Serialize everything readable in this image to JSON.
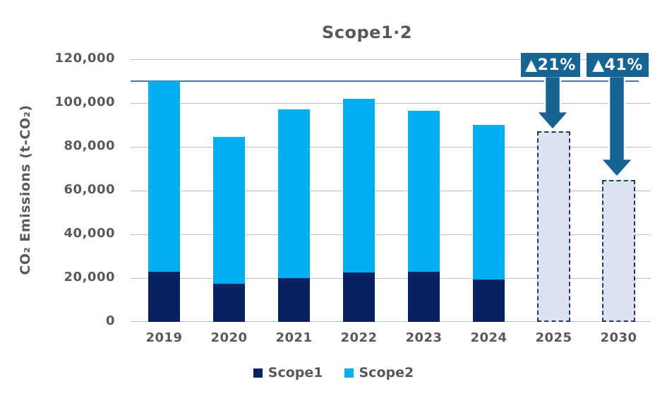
{
  "colors": {
    "text": "#595959",
    "grid": "#BFBFBF",
    "accent": "#166494",
    "baseline_line": "#4472C4",
    "scope1": "#062262",
    "scope2": "#00AFF0",
    "projected_fill": "#DBE3F1",
    "projected_border": "#1F3864",
    "background": "#FFFFFF",
    "annotation_text": "#FFFFFF"
  },
  "chart_data": {
    "type": "bar",
    "stacked": true,
    "title": "Scope1·2",
    "ylabel": "CO₂ Emissions (t-CO₂)",
    "xlabel": "",
    "ylim": [
      0,
      120000
    ],
    "ytick_step": 20000,
    "ytick_labels": [
      "0",
      "20,000",
      "40,000",
      "60,000",
      "80,000",
      "100,000",
      "120,000"
    ],
    "grid": true,
    "legend_position": "bottom",
    "categories": [
      "2019",
      "2020",
      "2021",
      "2022",
      "2023",
      "2024",
      "2025",
      "2030"
    ],
    "series": [
      {
        "name": "Scope1",
        "color": "#062262",
        "values": [
          23000,
          17500,
          20000,
          22500,
          22800,
          19500,
          null,
          null
        ]
      },
      {
        "name": "Scope2",
        "color": "#00AFF0",
        "values": [
          87000,
          67000,
          77000,
          79500,
          73700,
          70500,
          null,
          null
        ]
      }
    ],
    "totals": [
      110000,
      84500,
      97000,
      102000,
      96500,
      90000,
      87000,
      65000
    ],
    "projected_totals": [
      null,
      null,
      null,
      null,
      null,
      null,
      87000,
      65000
    ],
    "baseline_value": 110000,
    "annotations": [
      {
        "label": "▲21%",
        "target": "2025"
      },
      {
        "label": "▲41%",
        "target": "2030"
      }
    ]
  }
}
